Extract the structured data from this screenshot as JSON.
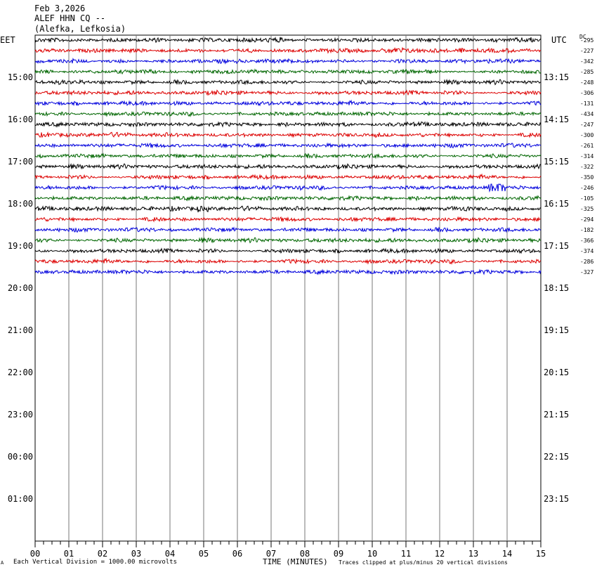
{
  "header": {
    "date": "Feb 3,2026",
    "station": "ALEF HHN CQ --",
    "location": "(Alefka, Lefkosia)"
  },
  "timezones": {
    "left": "EET",
    "right": "UTC",
    "dc_label": "DC"
  },
  "footer": {
    "scale": "Each Vertical Division = 1000.00 microvolts",
    "xlabel": "TIME (MINUTES)",
    "clip_note": "Traces clipped at plus/minus 20 vertical divisions",
    "corner": "A"
  },
  "colors": {
    "trace_cycle": [
      "#000000",
      "#dd0000",
      "#0000dd",
      "#006600"
    ],
    "grid": "#777777"
  },
  "chart_data": {
    "type": "line",
    "title": "ALEF HHN CQ --",
    "xlabel": "TIME (MINUTES)",
    "x_ticks": [
      "00",
      "01",
      "02",
      "03",
      "04",
      "05",
      "06",
      "07",
      "08",
      "09",
      "10",
      "11",
      "12",
      "13",
      "14",
      "15"
    ],
    "xlim": [
      0,
      15
    ],
    "minor_ticks_per_minute": 4,
    "hour_labels_left": [
      "15:00",
      "16:00",
      "17:00",
      "18:00",
      "19:00",
      "20:00",
      "21:00",
      "22:00",
      "23:00",
      "00:00",
      "01:00"
    ],
    "hour_labels_right": [
      "13:15",
      "14:15",
      "15:15",
      "16:15",
      "17:15",
      "18:15",
      "19:15",
      "20:15",
      "21:15",
      "22:15",
      "23:15"
    ],
    "dc_offsets": [
      "-295",
      "-227",
      "-342",
      "-285",
      "-248",
      "-306",
      "-131",
      "-434",
      "-247",
      "-300",
      "-261",
      "-314",
      "-322",
      "-350",
      "-246",
      "-105",
      "-325",
      "-294",
      "-182",
      "-366",
      "-374",
      "-286",
      "-327"
    ],
    "trace_count": 23,
    "rows_total": 48
  }
}
